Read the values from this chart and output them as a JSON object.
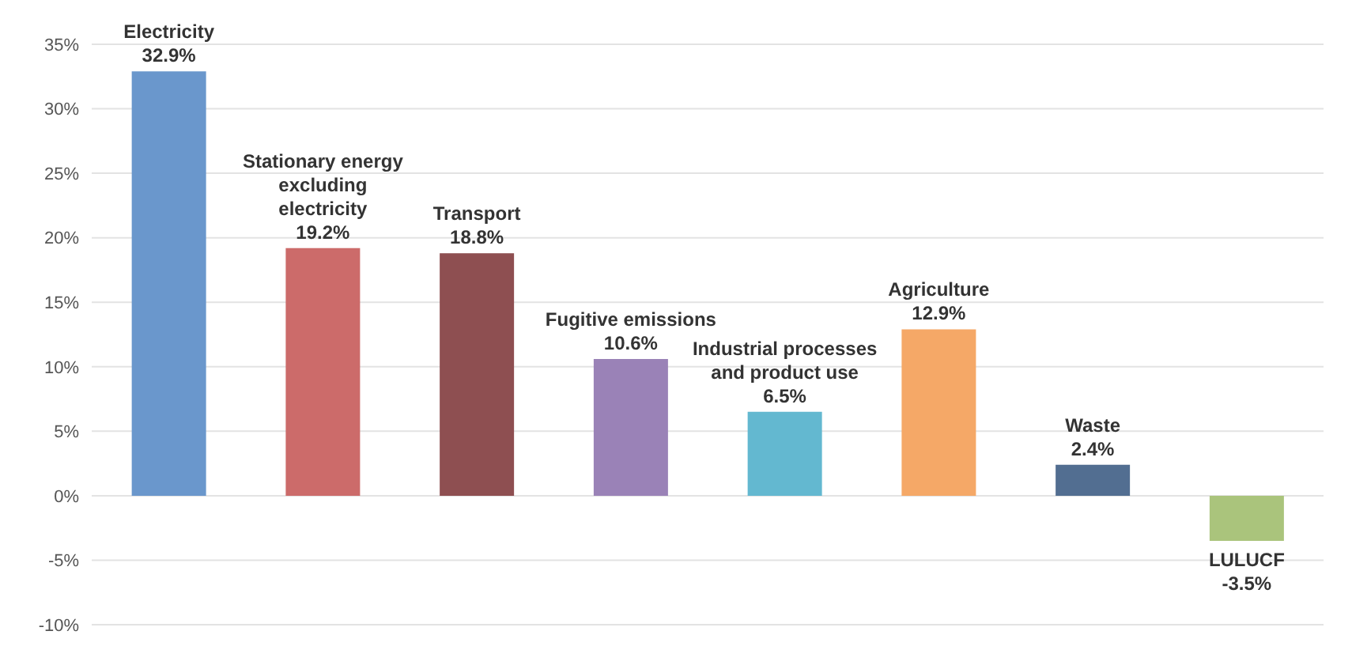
{
  "chart_data": {
    "type": "bar",
    "categories": [
      "Electricity",
      "Stationary energy excluding electricity",
      "Transport",
      "Fugitive emissions",
      "Industrial processes and product use",
      "Agriculture",
      "Waste",
      "LULUCF"
    ],
    "values": [
      32.9,
      19.2,
      18.8,
      10.6,
      6.5,
      12.9,
      2.4,
      -3.5
    ],
    "colors": [
      "#6a97cc",
      "#cc6b6a",
      "#8e4f51",
      "#9a82b7",
      "#63b8d0",
      "#f5a867",
      "#526e91",
      "#aac47c"
    ],
    "value_labels": [
      "32.9%",
      "19.2%",
      "18.8%",
      "10.6%",
      "6.5%",
      "12.9%",
      "2.4%",
      "-3.5%"
    ],
    "ylim": [
      -10,
      35
    ],
    "yticks": [
      {
        "value": -10,
        "label": "-10%"
      },
      {
        "value": -5,
        "label": "-5%"
      },
      {
        "value": 0,
        "label": "0%"
      },
      {
        "value": 5,
        "label": "5%"
      },
      {
        "value": 10,
        "label": "10%"
      },
      {
        "value": 15,
        "label": "15%"
      },
      {
        "value": 20,
        "label": "20%"
      },
      {
        "value": 25,
        "label": "25%"
      },
      {
        "value": 30,
        "label": "30%"
      },
      {
        "value": 35,
        "label": "35%"
      }
    ],
    "grid": "y",
    "tick_labels": "y"
  }
}
